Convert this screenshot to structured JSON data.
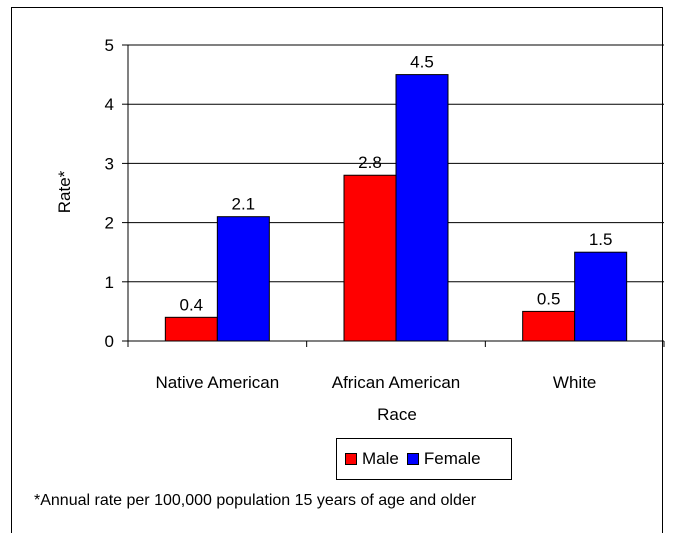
{
  "chart_data": {
    "type": "bar",
    "categories": [
      "Native American",
      "African American",
      "White"
    ],
    "series": [
      {
        "name": "Male",
        "values": [
          0.4,
          2.8,
          0.5
        ],
        "color": "#ff0000",
        "value_labels": [
          "0.4",
          "2.8",
          "0.5"
        ]
      },
      {
        "name": "Female",
        "values": [
          2.1,
          4.5,
          1.5
        ],
        "color": "#0000ff",
        "value_labels": [
          "2.1",
          "4.5",
          "1.5"
        ]
      }
    ],
    "xlabel": "Race",
    "ylabel": "Rate*",
    "ylim": [
      0,
      5
    ],
    "yticks": [
      "0",
      "1",
      "2",
      "3",
      "4",
      "5"
    ],
    "grid": true,
    "legend_position": "bottom",
    "footnote": "*Annual rate per 100,000 population 15 years of age and older"
  }
}
